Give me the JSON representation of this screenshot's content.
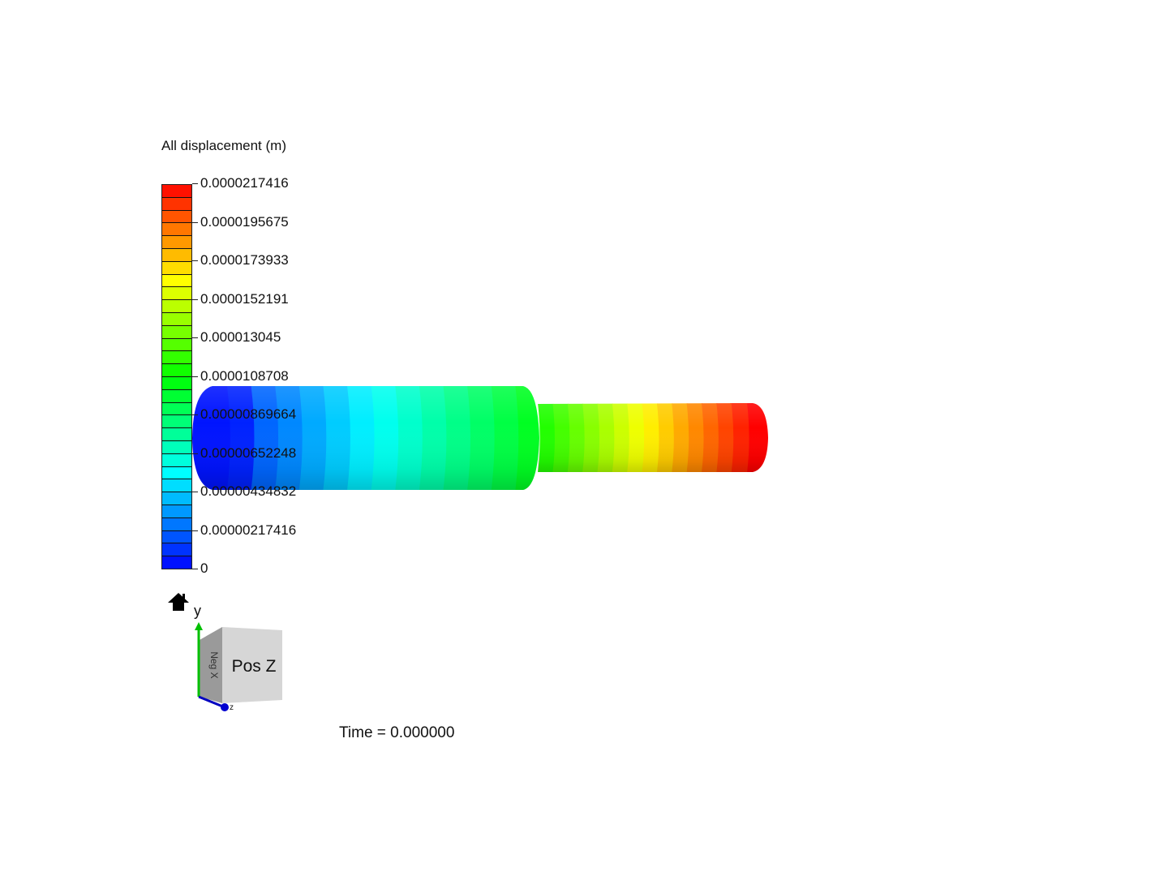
{
  "legend": {
    "title": "All displacement (m)",
    "levels": 30,
    "min": 0,
    "max": 2.17416e-05,
    "ticks": [
      "0.0000217416",
      "0.0000195675",
      "0.0000173933",
      "0.0000152191",
      "0.000013045",
      "0.0000108708",
      "0.00000869664",
      "0.00000652248",
      "0.00000434832",
      "0.00000217416",
      "0"
    ],
    "colormap": "rainbow (blue-to-red)"
  },
  "viewport": {
    "time_label": "Time = 0.000000",
    "home_icon": "home-icon",
    "orientation": {
      "face_label": "Pos Z",
      "side_label": "Neg X",
      "axis_y": "y",
      "axis_z": "z",
      "axis_y_color": "#00c000",
      "axis_z_color": "#0000c0"
    }
  }
}
